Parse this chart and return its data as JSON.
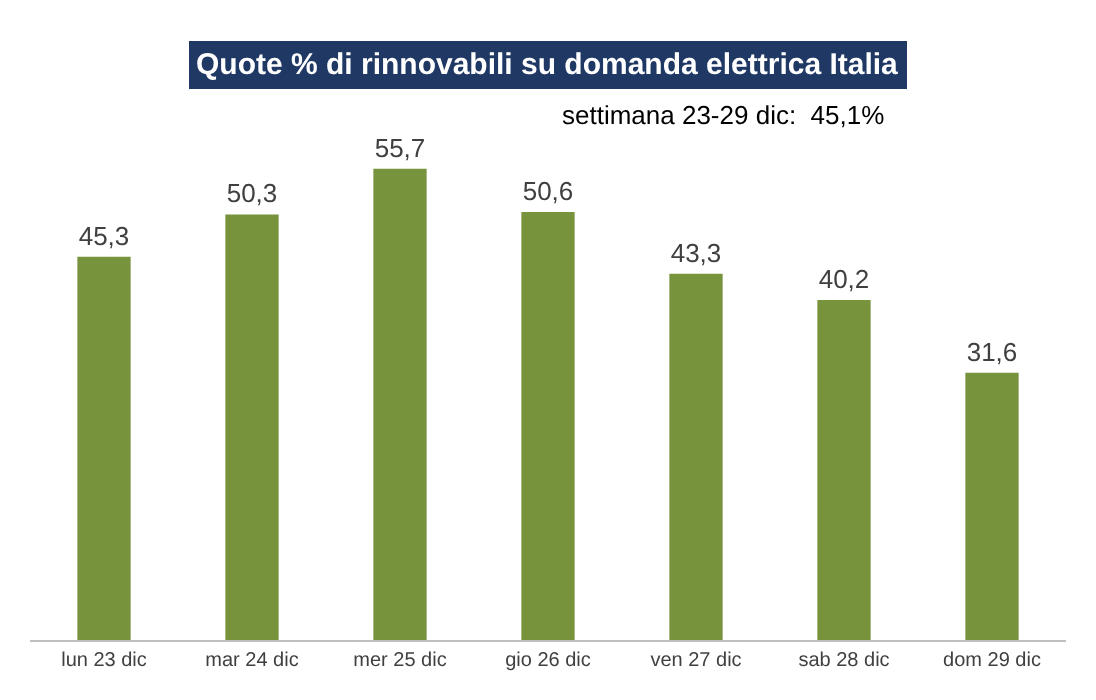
{
  "chart_data": {
    "type": "bar",
    "title": "Quote % di rinnovabili su domanda elettrica Italia",
    "subtitle": "settimana 23-29 dic:  45,1%",
    "categories": [
      "lun 23 dic",
      "mar 24 dic",
      "mer 25 dic",
      "gio 26 dic",
      "ven 27 dic",
      "sab 28 dic",
      "dom 29 dic"
    ],
    "values": [
      45.3,
      50.3,
      55.7,
      50.6,
      43.3,
      40.2,
      31.6
    ],
    "value_labels": [
      "45,3",
      "50,3",
      "55,7",
      "50,6",
      "43,3",
      "40,2",
      "31,6"
    ],
    "color": "#77933c",
    "grid": false,
    "legend": false
  }
}
